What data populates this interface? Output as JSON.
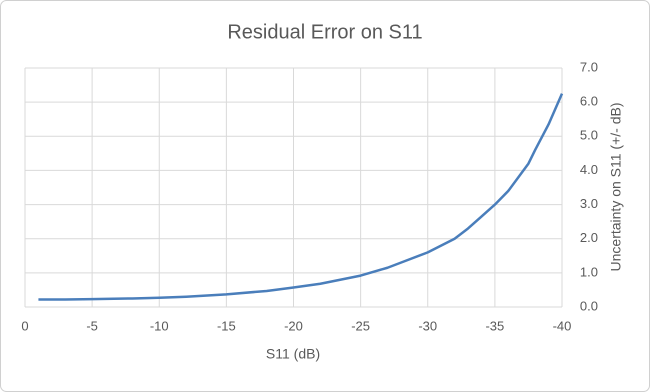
{
  "chart_data": {
    "type": "line",
    "title": "Residual Error on S11",
    "x_label": "S11 (dB)",
    "y_label": "Uncertainty on S11 (+/- dB)",
    "x": [
      -1,
      -2,
      -3,
      -5,
      -8,
      -10,
      -12,
      -15,
      -18,
      -20,
      -22,
      -25,
      -27,
      -28,
      -30,
      -32,
      -33,
      -34,
      -35,
      -36,
      -37.5,
      -38,
      -39,
      -40
    ],
    "series": [
      {
        "name": "Uncertainty",
        "color": "#4a7ebb",
        "values": [
          0.22,
          0.22,
          0.22,
          0.23,
          0.25,
          0.27,
          0.3,
          0.37,
          0.47,
          0.57,
          0.68,
          0.92,
          1.15,
          1.3,
          1.6,
          2.0,
          2.3,
          2.65,
          3.0,
          3.4,
          4.2,
          4.6,
          5.35,
          6.25
        ]
      }
    ],
    "xlim": [
      0,
      -40
    ],
    "xticks": [
      0,
      -5,
      -10,
      -15,
      -20,
      -25,
      -30,
      -35,
      -40
    ],
    "ylim": [
      0,
      7
    ],
    "yticks": [
      {
        "value": 0,
        "label": "0.0"
      },
      {
        "value": 1,
        "label": "1.0"
      },
      {
        "value": 2,
        "label": "2.0"
      },
      {
        "value": 3,
        "label": "3.0"
      },
      {
        "value": 4,
        "label": "4.0"
      },
      {
        "value": 5,
        "label": "5.0"
      },
      {
        "value": 6,
        "label": "6.0"
      },
      {
        "value": 7,
        "label": "7.0"
      }
    ],
    "y_axis_side": "right",
    "grid": true
  }
}
